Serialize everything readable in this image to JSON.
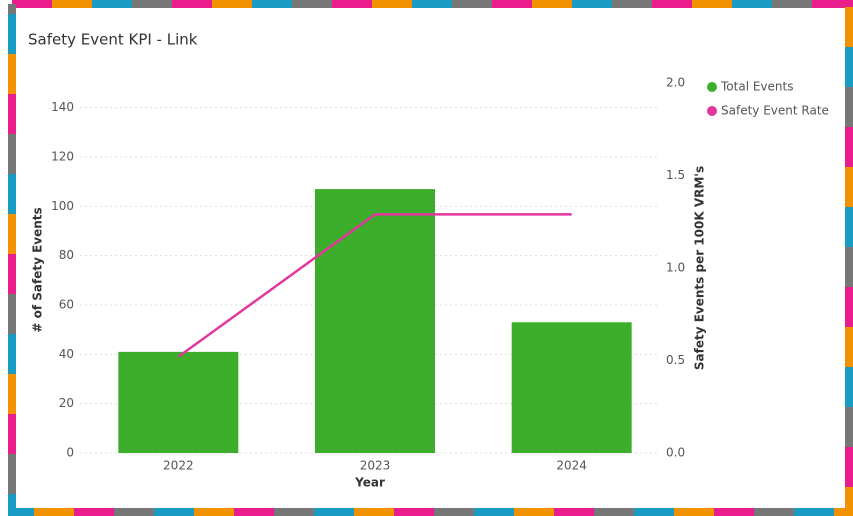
{
  "chart_data": {
    "type": "bar-line",
    "title": "Safety Event KPI - Link",
    "x_label": "Year",
    "y_label": "# of Safety Events",
    "y2_label": "Safety Events per 100K VRM's",
    "categories": [
      "2022",
      "2023",
      "2024"
    ],
    "series": [
      {
        "name": "Total Events",
        "type": "bar",
        "color": "#3dae2b",
        "values": [
          41,
          107,
          53
        ]
      },
      {
        "name": "Safety Event Rate",
        "type": "line",
        "axis": "y2",
        "color": "#e3359e",
        "values": [
          0.52,
          1.29,
          1.29
        ]
      }
    ],
    "ylim": [
      0,
      150
    ],
    "yticks": [
      0,
      20,
      40,
      60,
      80,
      100,
      120,
      140
    ],
    "y2lim": [
      0,
      2
    ],
    "y2ticks": [
      {
        "value": 0,
        "label": "0.0"
      },
      {
        "value": 0.5,
        "label": "0.5"
      },
      {
        "value": 1,
        "label": "1.0"
      },
      {
        "value": 1.5,
        "label": "1.5"
      },
      {
        "value": 2,
        "label": "2.0"
      }
    ],
    "grid": true,
    "legend": "top-right"
  }
}
